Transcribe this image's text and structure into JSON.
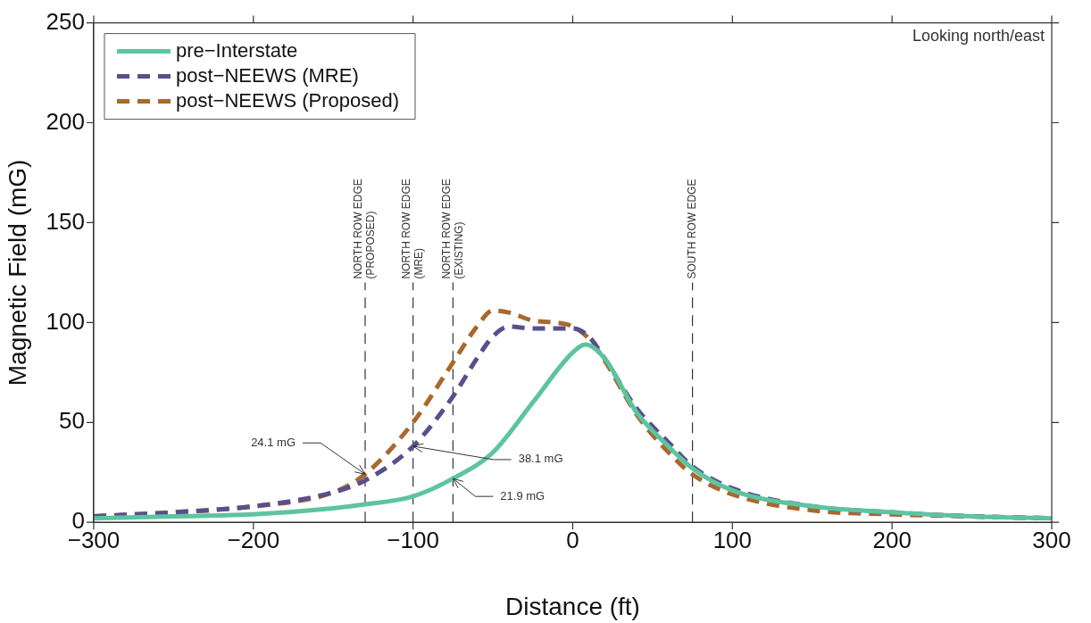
{
  "chart_data": {
    "type": "line",
    "xlabel": "Distance (ft)",
    "ylabel": "Magnetic Field (mG)",
    "xlim": [
      -300,
      300
    ],
    "xticks": [
      -300,
      -200,
      -100,
      0,
      100,
      200,
      300
    ],
    "ylim": [
      0,
      250
    ],
    "yticks": [
      0,
      50,
      100,
      150,
      200,
      250
    ],
    "grid": false,
    "legend": "top left",
    "marker": "none",
    "series": [
      {
        "name": "pre−Interstate",
        "color": "#5dc4a0",
        "line_style": "solid",
        "x": [
          -300,
          -250,
          -200,
          -150,
          -130,
          -100,
          -75,
          -50,
          -25,
          0,
          8,
          20,
          40,
          60,
          75,
          100,
          150,
          200,
          250,
          300
        ],
        "values": [
          2,
          3,
          4,
          7,
          9,
          13,
          21.9,
          35,
          60,
          85,
          89,
          82,
          55,
          38,
          27,
          16,
          8,
          5,
          3,
          2
        ]
      },
      {
        "name": "post−NEEWS (MRE)",
        "color": "#5a4f8c",
        "line_style": "dashed",
        "x": [
          -300,
          -250,
          -200,
          -150,
          -130,
          -100,
          -75,
          -60,
          -50,
          -40,
          -25,
          -10,
          0,
          10,
          20,
          40,
          60,
          75,
          100,
          150,
          200,
          250,
          300
        ],
        "values": [
          3,
          5,
          8,
          15,
          21,
          38.1,
          63,
          82,
          93,
          98,
          97,
          97,
          97,
          93,
          82,
          57,
          40,
          28,
          17,
          8,
          5,
          3,
          2
        ]
      },
      {
        "name": "post−NEEWS (Proposed)",
        "color": "#a8682e",
        "line_style": "dashed",
        "x": [
          -300,
          -250,
          -200,
          -150,
          -130,
          -100,
          -75,
          -60,
          -50,
          -40,
          -25,
          -10,
          0,
          10,
          20,
          40,
          60,
          75,
          100,
          150,
          200,
          250,
          300
        ],
        "values": [
          3,
          5,
          8,
          15,
          24.1,
          50,
          80,
          98,
          106,
          105,
          101,
          100,
          98,
          92,
          81,
          54,
          35,
          24,
          14,
          6,
          4,
          3,
          2
        ]
      }
    ],
    "ref_lines": [
      {
        "axis": "x",
        "value": -130,
        "label": "NORTH ROW EDGE\n(PROPOSED)",
        "line_style": "dashed"
      },
      {
        "axis": "x",
        "value": -100,
        "label": "NORTH ROW EDGE\n(MRE)",
        "line_style": "dashed"
      },
      {
        "axis": "x",
        "value": -75,
        "label": "NORTH ROW EDGE\n(EXISTING)",
        "line_style": "dashed"
      },
      {
        "axis": "x",
        "value": 75,
        "label": "SOUTH ROW EDGE",
        "line_style": "dashed"
      }
    ],
    "annotations": [
      {
        "text": "24.1 mG",
        "x": -130,
        "y": 24.1
      },
      {
        "text": "38.1 mG",
        "x": -100,
        "y": 38.1
      },
      {
        "text": "21.9 mG",
        "x": -75,
        "y": 21.9
      },
      "Looking north/east"
    ]
  }
}
